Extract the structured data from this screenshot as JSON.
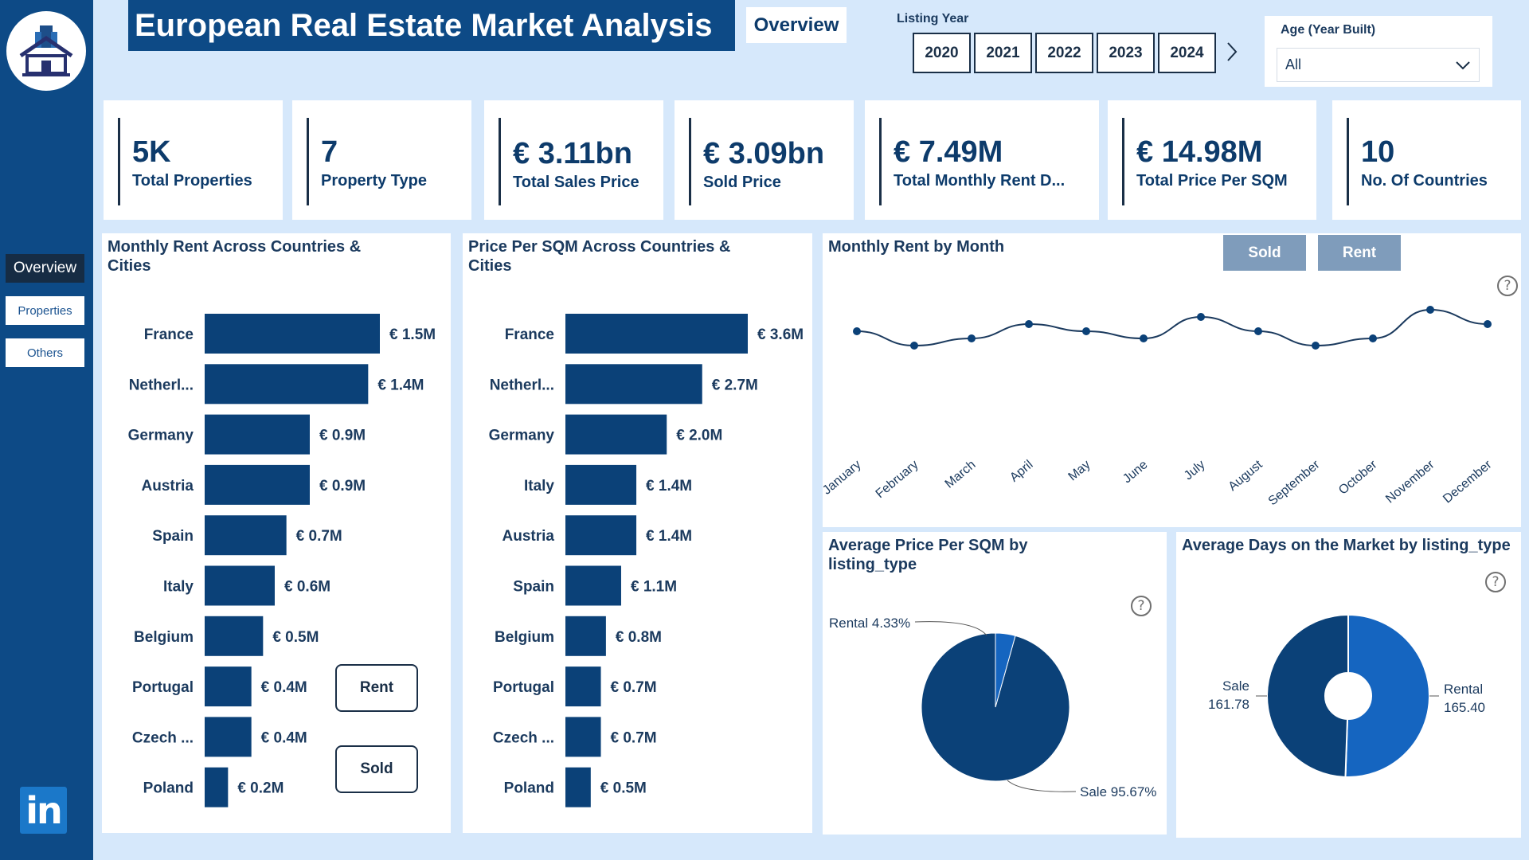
{
  "header": {
    "title": "European Real Estate Market Analysis",
    "page_tag": "Overview"
  },
  "sidebar": {
    "items": [
      {
        "label": "Overview",
        "active": true
      },
      {
        "label": "Properties",
        "active": false
      },
      {
        "label": "Others",
        "active": false
      }
    ],
    "logo_icon": "house-logo-icon",
    "social_icon": "linkedin-icon",
    "social_label": "in"
  },
  "filters": {
    "listing_year_label": "Listing Year",
    "years": [
      "2020",
      "2021",
      "2022",
      "2023",
      "2024"
    ],
    "age_label": "Age (Year Built)",
    "age_value": "All"
  },
  "kpis": [
    {
      "value": "5K",
      "label": "Total Properties"
    },
    {
      "value": "7",
      "label": "Property Type"
    },
    {
      "value": "€ 3.11bn",
      "label": "Total Sales Price"
    },
    {
      "value": "€ 3.09bn",
      "label": "Sold Price"
    },
    {
      "value": "€ 7.49M",
      "label": "Total Monthly Rent D..."
    },
    {
      "value": "€ 14.98M",
      "label": "Total Price Per SQM"
    },
    {
      "value": "10",
      "label": "No. Of Countries"
    }
  ],
  "buttons": {
    "rent": "Rent",
    "sold": "Sold"
  },
  "colors": {
    "primary": "#0d4a86",
    "accent": "#1565c0",
    "background": "#d6e8fb",
    "tab_inactive": "#7f9cbb"
  },
  "chart_data": [
    {
      "id": "rent_by_country",
      "type": "bar",
      "title": "Monthly Rent Across Countries & Cities",
      "orientation": "horizontal",
      "categories": [
        "France",
        "Netherl...",
        "Germany",
        "Austria",
        "Spain",
        "Italy",
        "Belgium",
        "Portugal",
        "Czech ...",
        "Poland"
      ],
      "values": [
        1.5,
        1.4,
        0.9,
        0.9,
        0.7,
        0.6,
        0.5,
        0.4,
        0.4,
        0.2
      ],
      "labels": [
        "€ 1.5M",
        "€ 1.4M",
        "€ 0.9M",
        "€ 0.9M",
        "€ 0.7M",
        "€ 0.6M",
        "€ 0.5M",
        "€ 0.4M",
        "€ 0.4M",
        "€ 0.2M"
      ],
      "unit": "M €"
    },
    {
      "id": "price_sqm_by_country",
      "type": "bar",
      "title": "Price Per SQM Across Countries & Cities",
      "orientation": "horizontal",
      "categories": [
        "France",
        "Netherl...",
        "Germany",
        "Italy",
        "Austria",
        "Spain",
        "Belgium",
        "Portugal",
        "Czech ...",
        "Poland"
      ],
      "values": [
        3.6,
        2.7,
        2.0,
        1.4,
        1.4,
        1.1,
        0.8,
        0.7,
        0.7,
        0.5
      ],
      "labels": [
        "€ 3.6M",
        "€ 2.7M",
        "€ 2.0M",
        "€ 1.4M",
        "€ 1.4M",
        "€ 1.1M",
        "€ 0.8M",
        "€ 0.7M",
        "€ 0.7M",
        "€ 0.5M"
      ],
      "unit": "M €"
    },
    {
      "id": "rent_by_month",
      "type": "line",
      "title": "Monthly Rent by Month",
      "categories": [
        "January",
        "February",
        "March",
        "April",
        "May",
        "June",
        "July",
        "August",
        "September",
        "October",
        "November",
        "December"
      ],
      "values": [
        0.63,
        0.61,
        0.62,
        0.64,
        0.63,
        0.62,
        0.65,
        0.63,
        0.61,
        0.62,
        0.66,
        0.64
      ],
      "ylim": [
        0.5,
        0.7
      ],
      "tabs": [
        "Sold",
        "Rent"
      ]
    },
    {
      "id": "avg_price_sqm_type",
      "type": "pie",
      "title": "Average Price Per SQM by listing_type",
      "slices": [
        {
          "name": "Sale",
          "value": 95.67,
          "label": "Sale 95.67%",
          "color": "#0b4178"
        },
        {
          "name": "Rental",
          "value": 4.33,
          "label": "Rental 4.33%",
          "color": "#1565c0"
        }
      ]
    },
    {
      "id": "avg_days_market_type",
      "type": "pie",
      "title": "Average Days on the Market by listing_type",
      "donut": true,
      "slices": [
        {
          "name": "Rental",
          "value": 165.4,
          "label_name": "Rental",
          "label_value": "165.40",
          "color": "#1565c0"
        },
        {
          "name": "Sale",
          "value": 161.78,
          "label_name": "Sale",
          "label_value": "161.78",
          "color": "#0b4178"
        }
      ]
    }
  ]
}
